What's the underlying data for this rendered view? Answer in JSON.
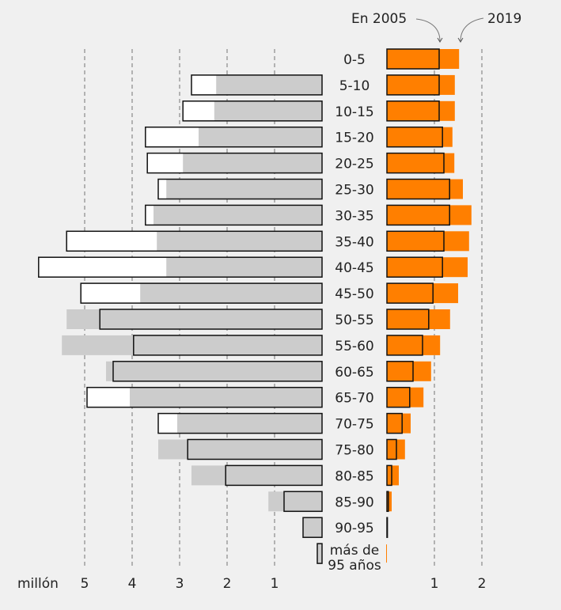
{
  "chart_data": {
    "type": "bar",
    "subtype": "population-pyramid",
    "unit_label": "millón",
    "annotations": {
      "year_a": "En 2005",
      "year_b": "2019"
    },
    "categories": [
      "0-5",
      "5-10",
      "10-15",
      "15-20",
      "20-25",
      "25-30",
      "30-35",
      "35-40",
      "40-45",
      "45-50",
      "50-55",
      "55-60",
      "60-65",
      "65-70",
      "70-75",
      "75-80",
      "80-85",
      "85-90",
      "90-95",
      "más de 95 años"
    ],
    "category_lines": [
      [
        "0-5"
      ],
      [
        "5-10"
      ],
      [
        "10-15"
      ],
      [
        "15-20"
      ],
      [
        "20-25"
      ],
      [
        "25-30"
      ],
      [
        "30-35"
      ],
      [
        "35-40"
      ],
      [
        "40-45"
      ],
      [
        "45-50"
      ],
      [
        "50-55"
      ],
      [
        "55-60"
      ],
      [
        "60-65"
      ],
      [
        "65-70"
      ],
      [
        "70-75"
      ],
      [
        "75-80"
      ],
      [
        "80-85"
      ],
      [
        "85-90"
      ],
      [
        "90-95"
      ],
      [
        "más de",
        "95 años"
      ]
    ],
    "left": {
      "xlim": [
        0,
        5.5
      ],
      "ticks": [
        5,
        4,
        3,
        2,
        1
      ],
      "tick_labels": [
        "5",
        "4",
        "3",
        "2",
        "1"
      ],
      "series": [
        {
          "name": "outlined",
          "values": [
            0,
            2.75,
            2.93,
            3.72,
            3.68,
            3.45,
            3.72,
            5.38,
            5.97,
            5.08,
            4.68,
            3.97,
            4.4,
            4.95,
            3.45,
            2.83,
            2.03,
            0.8,
            0.4,
            0.1
          ]
        },
        {
          "name": "gray",
          "values": [
            0,
            2.23,
            2.27,
            2.6,
            2.93,
            3.28,
            3.55,
            3.48,
            3.28,
            3.83,
            5.38,
            5.48,
            4.55,
            4.05,
            3.05,
            3.45,
            2.75,
            1.13,
            0.4,
            0.1
          ]
        }
      ]
    },
    "right": {
      "xlim": [
        0,
        2
      ],
      "ticks": [
        1,
        2
      ],
      "tick_labels": [
        "1",
        "2"
      ],
      "series": [
        {
          "name": "En 2005",
          "values": [
            1.1,
            1.1,
            1.1,
            1.17,
            1.2,
            1.32,
            1.32,
            1.2,
            1.17,
            0.97,
            0.88,
            0.75,
            0.55,
            0.48,
            0.32,
            0.2,
            0.1,
            0.03,
            0.01,
            0
          ]
        },
        {
          "name": "2019",
          "values": [
            1.52,
            1.43,
            1.43,
            1.38,
            1.42,
            1.6,
            1.78,
            1.73,
            1.7,
            1.5,
            1.33,
            1.12,
            0.93,
            0.77,
            0.5,
            0.38,
            0.25,
            0.1,
            0.01,
            0.01
          ]
        }
      ]
    },
    "colors": {
      "orange": "#ff7f00",
      "gray": "#cccccc",
      "white": "#ffffff",
      "outline": "#111111",
      "grid": "#888888",
      "arrow": "#777777"
    },
    "grid": true
  }
}
